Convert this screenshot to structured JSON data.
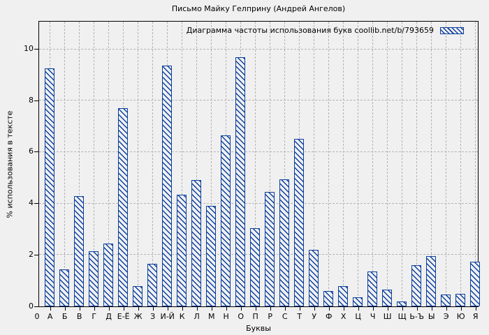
{
  "colors": {
    "bar_blue": "#0a3f9f",
    "background": "#f0f0f0",
    "grid": "#b4b4b4",
    "frame": "#000000"
  },
  "chart_data": {
    "type": "bar",
    "title": "Письмо Майку Гелприну (Андрей Ангелов)",
    "legend_label": "Диаграмма частоты использования букв coollib.net/b/793659",
    "legend_position": "top-right-inside",
    "xlabel": "Буквы",
    "ylabel": "% использования в тексте",
    "grid": true,
    "bar_style": "blue-diagonal-hatch",
    "ylim": [
      0,
      11.1
    ],
    "ytics": [
      0,
      2,
      4,
      6,
      8,
      10
    ],
    "x_origin_label": "0",
    "categories": [
      "А",
      "Б",
      "В",
      "Г",
      "Д",
      "Е-Ё",
      "Ж",
      "З",
      "И-Й",
      "К",
      "Л",
      "М",
      "Н",
      "О",
      "П",
      "Р",
      "С",
      "Т",
      "У",
      "Ф",
      "Х",
      "Ц",
      "Ч",
      "Ш",
      "Щ",
      "Ь-Ъ",
      "Ы",
      "Э",
      "Ю",
      "Я"
    ],
    "values": [
      9.25,
      1.45,
      4.3,
      2.15,
      2.45,
      7.7,
      0.8,
      1.65,
      9.35,
      4.35,
      4.9,
      3.9,
      6.65,
      9.7,
      3.05,
      4.45,
      4.95,
      6.5,
      2.2,
      0.6,
      0.8,
      0.35,
      1.35,
      0.65,
      0.2,
      1.6,
      1.95,
      0.45,
      0.5,
      1.75
    ]
  }
}
